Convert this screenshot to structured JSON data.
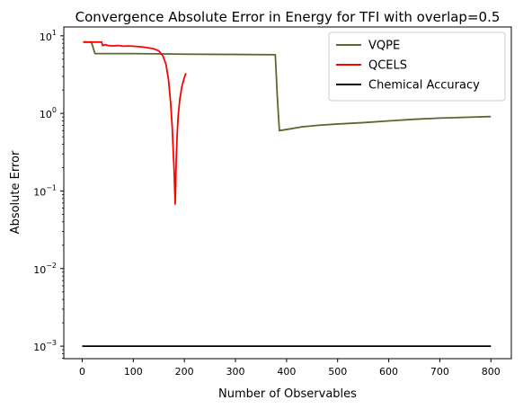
{
  "chart_data": {
    "type": "line",
    "title": "Convergence Absolute Error in Energy for TFI with overlap=0.5",
    "xlabel": "Number of Observables",
    "ylabel": "Absolute Error",
    "xlim": [
      -36,
      840
    ],
    "ylim": [
      0.00069,
      13.0
    ],
    "yscale": "log",
    "xticks": [
      0,
      100,
      200,
      300,
      400,
      500,
      600,
      700,
      800
    ],
    "yticks": [
      {
        "value": 0.001,
        "base": "10",
        "exp": "−3"
      },
      {
        "value": 0.01,
        "base": "10",
        "exp": "−2"
      },
      {
        "value": 0.1,
        "base": "10",
        "exp": "−1"
      },
      {
        "value": 1,
        "base": "10",
        "exp": "0"
      },
      {
        "value": 10,
        "base": "10",
        "exp": "1"
      }
    ],
    "grid": false,
    "legend_position": "top-right",
    "series": [
      {
        "name": "VQPE",
        "color": "#556b2f",
        "points": [
          [
            2,
            8.3
          ],
          [
            18,
            8.3
          ],
          [
            25,
            5.9
          ],
          [
            100,
            5.9
          ],
          [
            200,
            5.8
          ],
          [
            300,
            5.75
          ],
          [
            378,
            5.7
          ],
          [
            382,
            1.6
          ],
          [
            386,
            0.6
          ],
          [
            400,
            0.62
          ],
          [
            430,
            0.67
          ],
          [
            460,
            0.7
          ],
          [
            500,
            0.73
          ],
          [
            550,
            0.76
          ],
          [
            600,
            0.8
          ],
          [
            650,
            0.84
          ],
          [
            700,
            0.87
          ],
          [
            750,
            0.89
          ],
          [
            800,
            0.91
          ]
        ]
      },
      {
        "name": "QCELS",
        "color": "#ff0000",
        "points": [
          [
            2,
            8.3
          ],
          [
            38,
            8.3
          ],
          [
            40,
            7.5
          ],
          [
            45,
            7.7
          ],
          [
            50,
            7.5
          ],
          [
            60,
            7.4
          ],
          [
            70,
            7.5
          ],
          [
            80,
            7.35
          ],
          [
            90,
            7.4
          ],
          [
            100,
            7.35
          ],
          [
            110,
            7.25
          ],
          [
            120,
            7.15
          ],
          [
            130,
            7.0
          ],
          [
            140,
            6.8
          ],
          [
            150,
            6.4
          ],
          [
            158,
            5.5
          ],
          [
            164,
            4.3
          ],
          [
            169,
            2.7
          ],
          [
            173,
            1.4
          ],
          [
            176,
            0.7
          ],
          [
            178,
            0.35
          ],
          [
            180,
            0.18
          ],
          [
            181,
            0.11
          ],
          [
            182,
            0.068
          ],
          [
            183,
            0.12
          ],
          [
            184,
            0.25
          ],
          [
            186,
            0.55
          ],
          [
            188,
            0.95
          ],
          [
            191,
            1.5
          ],
          [
            195,
            2.2
          ],
          [
            200,
            2.9
          ],
          [
            203,
            3.3
          ]
        ]
      },
      {
        "name": "Chemical Accuracy",
        "color": "#000000",
        "points": [
          [
            0,
            0.001
          ],
          [
            800,
            0.001
          ]
        ]
      }
    ]
  }
}
